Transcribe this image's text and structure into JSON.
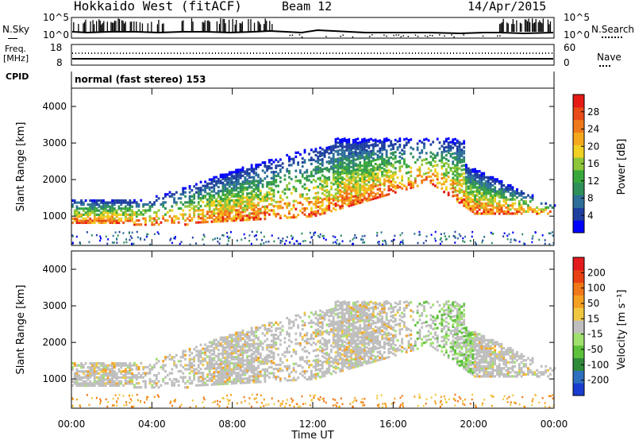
{
  "header": {
    "station": "Hokkaido West (fitACF)",
    "beam": "Beam 12",
    "date": "14/Apr/2015"
  },
  "sky_panel": {
    "left_label": "N.Sky",
    "right_label": "N.Search",
    "left_ticks": [
      "10^5",
      "10^0"
    ],
    "right_ticks": [
      "10^5",
      "10^0"
    ]
  },
  "freq_panel": {
    "left_label_1": "Freq.",
    "left_label_2": "[MHz]",
    "left_ticks": [
      "18",
      "8"
    ],
    "right_label": "Nave",
    "right_ticks": [
      "60",
      "0"
    ]
  },
  "cpid_panel": {
    "label": "CPID",
    "text": "normal (fast stereo) 153"
  },
  "chart_data": [
    {
      "type": "heatmap",
      "quantity": "Power",
      "ylabel": "Slant Range [km]",
      "xlabel": "Time UT",
      "ylim": [
        200,
        4500
      ],
      "yticks": [
        "1000",
        "2000",
        "3000",
        "4000"
      ],
      "colorbar_label": "Power [dB]",
      "colorbar_ticks": [
        "28",
        "24",
        "20",
        "16",
        "12",
        "8",
        "4"
      ],
      "colorbar_colors": [
        "#0000ff",
        "#1f3fa0",
        "#2e6f9a",
        "#2f8f5a",
        "#39a83c",
        "#8ec63a",
        "#f0d020",
        "#f6a81c",
        "#f07a1a",
        "#e84a18",
        "#e51a14"
      ]
    },
    {
      "type": "heatmap",
      "quantity": "Velocity",
      "ylabel": "Slant Range [km]",
      "xlabel": "Time UT",
      "ylim": [
        200,
        4500
      ],
      "yticks": [
        "1000",
        "2000",
        "3000",
        "4000"
      ],
      "colorbar_label": "Velocity [m s⁻¹]",
      "colorbar_ticks": [
        "200",
        "100",
        "50",
        "15",
        "-15",
        "-50",
        "-100",
        "-200"
      ],
      "colorbar_colors": [
        "#1a3cd0",
        "#2e6fbf",
        "#2f8a3a",
        "#5cc03a",
        "#9fe06e",
        "#bebebe",
        "#f0c840",
        "#f5a020",
        "#f07818",
        "#e84010",
        "#e31a1c"
      ]
    }
  ],
  "time_axis": {
    "label": "Time UT",
    "ticks": [
      "00:00",
      "04:00",
      "08:00",
      "12:00",
      "16:00",
      "20:00",
      "00:00"
    ]
  }
}
